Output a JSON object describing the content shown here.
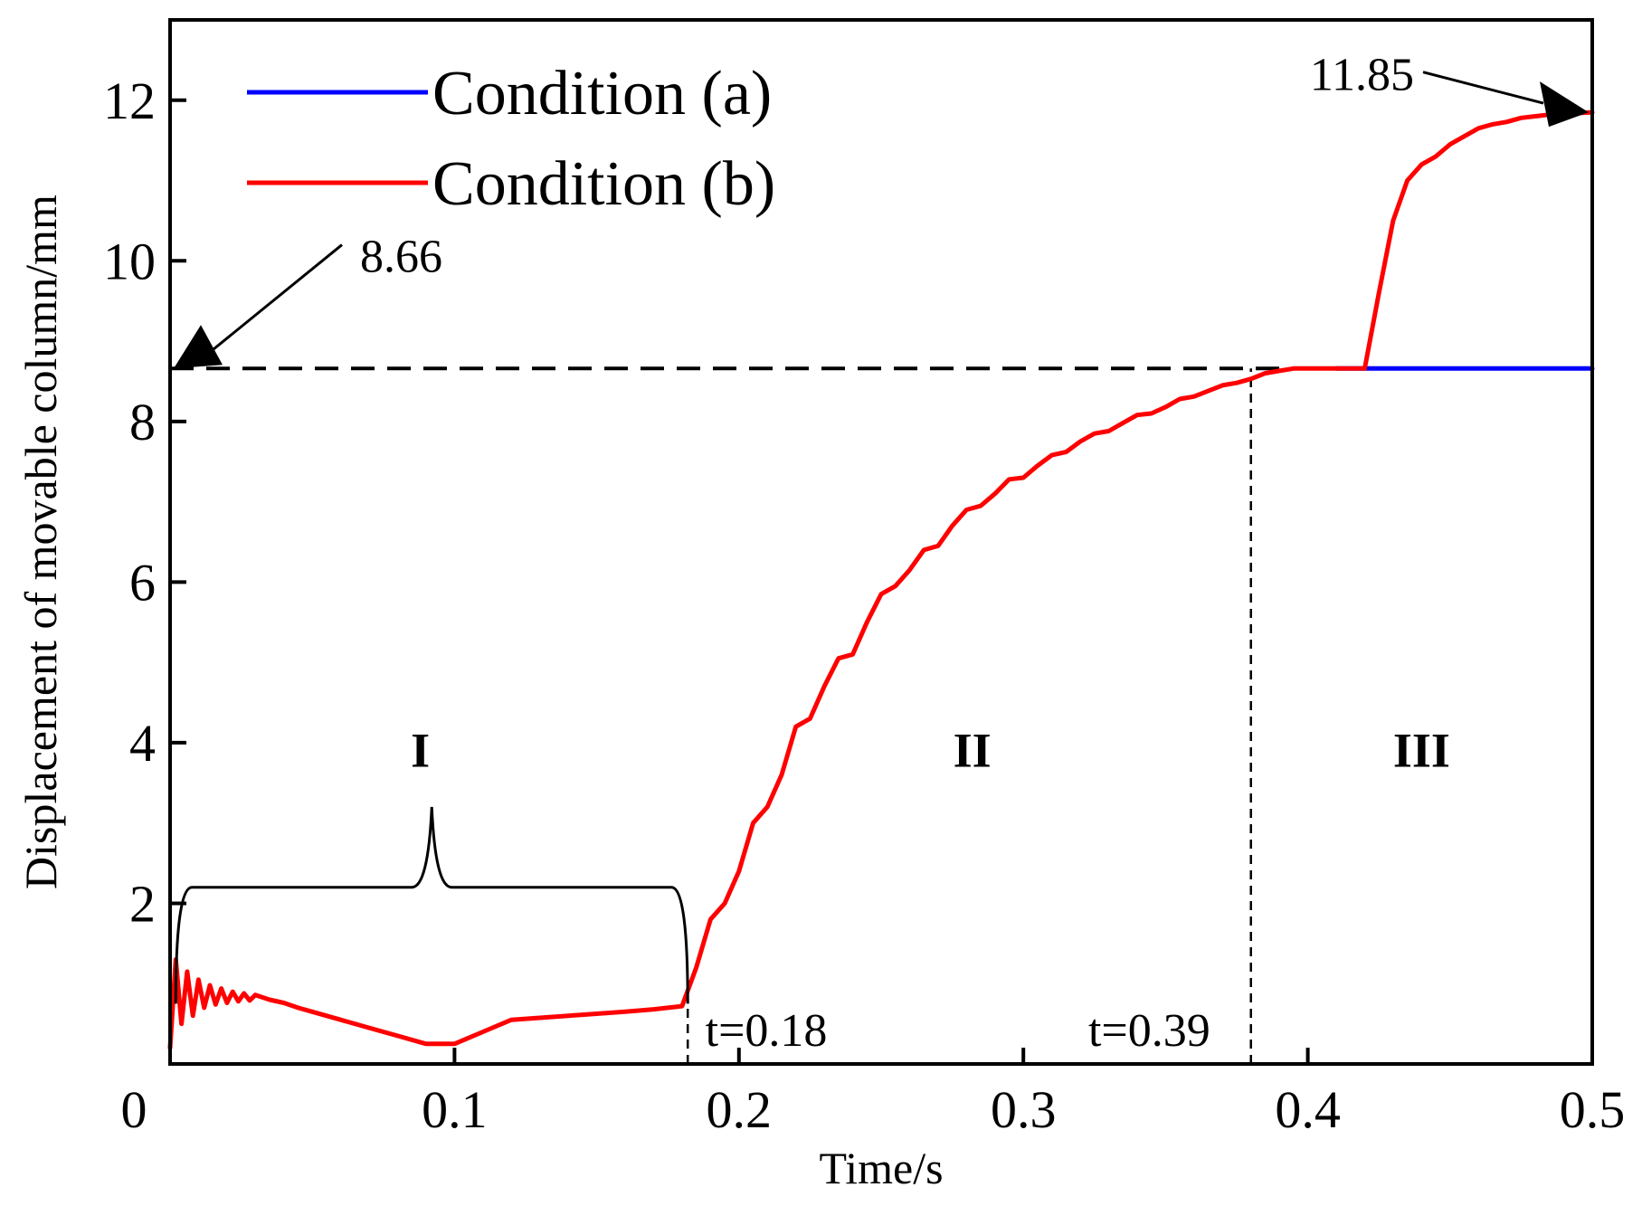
{
  "chart_data": {
    "type": "line",
    "xlabel": "Time/s",
    "ylabel": "Displacement of movable column/mm",
    "xlim": [
      0,
      0.5
    ],
    "ylim": [
      0,
      13
    ],
    "x_ticks": [
      "0",
      "0.1",
      "0.2",
      "0.3",
      "0.4",
      "0.5"
    ],
    "y_ticks": [
      "2",
      "4",
      "6",
      "8",
      "10",
      "12"
    ],
    "grid": false,
    "legend": "top-left",
    "series": [
      {
        "name": "Condition (a)",
        "color": "#0000ff",
        "x": [
          0.41,
          0.5
        ],
        "y": [
          8.66,
          8.66
        ]
      },
      {
        "name": "Condition (b)",
        "color": "#ff0000",
        "x": [
          0.0,
          0.002,
          0.004,
          0.006,
          0.008,
          0.01,
          0.012,
          0.014,
          0.016,
          0.018,
          0.02,
          0.022,
          0.024,
          0.026,
          0.028,
          0.03,
          0.035,
          0.04,
          0.045,
          0.05,
          0.06,
          0.07,
          0.08,
          0.09,
          0.1,
          0.11,
          0.12,
          0.14,
          0.16,
          0.17,
          0.18,
          0.185,
          0.19,
          0.195,
          0.2,
          0.205,
          0.21,
          0.215,
          0.22,
          0.225,
          0.23,
          0.235,
          0.24,
          0.245,
          0.25,
          0.255,
          0.26,
          0.265,
          0.27,
          0.275,
          0.28,
          0.285,
          0.29,
          0.295,
          0.3,
          0.305,
          0.31,
          0.315,
          0.32,
          0.325,
          0.33,
          0.335,
          0.34,
          0.345,
          0.35,
          0.355,
          0.36,
          0.365,
          0.37,
          0.375,
          0.38,
          0.385,
          0.39,
          0.395,
          0.4,
          0.41,
          0.42,
          0.425,
          0.43,
          0.435,
          0.44,
          0.445,
          0.45,
          0.455,
          0.46,
          0.465,
          0.47,
          0.475,
          0.48,
          0.485,
          0.49,
          0.495,
          0.5
        ],
        "y": [
          0.2,
          1.3,
          0.5,
          1.15,
          0.6,
          1.05,
          0.7,
          0.98,
          0.74,
          0.94,
          0.76,
          0.9,
          0.78,
          0.88,
          0.79,
          0.86,
          0.8,
          0.76,
          0.7,
          0.65,
          0.55,
          0.45,
          0.35,
          0.25,
          0.25,
          0.4,
          0.55,
          0.6,
          0.65,
          0.68,
          0.72,
          1.2,
          1.8,
          2.0,
          2.4,
          3.0,
          3.2,
          3.6,
          4.2,
          4.3,
          4.7,
          5.05,
          5.1,
          5.5,
          5.85,
          5.95,
          6.15,
          6.4,
          6.45,
          6.7,
          6.9,
          6.95,
          7.1,
          7.28,
          7.3,
          7.45,
          7.58,
          7.62,
          7.75,
          7.85,
          7.88,
          7.98,
          8.08,
          8.1,
          8.18,
          8.28,
          8.31,
          8.38,
          8.45,
          8.48,
          8.53,
          8.6,
          8.63,
          8.66,
          8.66,
          8.66,
          8.66,
          9.6,
          10.5,
          11.0,
          11.2,
          11.3,
          11.45,
          11.55,
          11.65,
          11.7,
          11.73,
          11.78,
          11.8,
          11.82,
          11.83,
          11.84,
          11.85
        ]
      }
    ],
    "annotations": {
      "value_a": "8.66",
      "value_b": "11.85",
      "t1": "t=0.18",
      "t2": "t=0.39",
      "region_1": "I",
      "region_2": "II",
      "region_3": "III"
    },
    "reference_lines": {
      "horizontal_y": 8.66,
      "vertical_x": [
        0.182,
        0.38
      ]
    },
    "zero_label": "0"
  }
}
